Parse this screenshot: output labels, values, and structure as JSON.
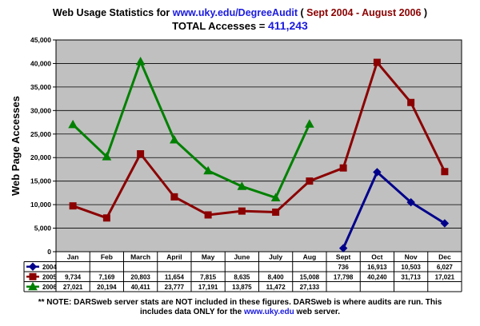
{
  "header": {
    "title_prefix": "Web Usage Statistics for ",
    "title_url": "www.uky.edu/DegreeAudit",
    "title_open": " ( ",
    "title_dates": "Sept 2004 - August 2006",
    "title_close": " )",
    "total_label": "TOTAL Accesses = ",
    "total_value": "411,243"
  },
  "note": {
    "line1": "** NOTE: DARSweb server stats are NOT included in these figures. DARSweb is where audits are run. This",
    "line2_prefix": "includes data ONLY for the ",
    "line2_url": "www.uky.edu",
    "line2_suffix": " web server."
  },
  "chart_data": {
    "type": "line",
    "ylabel": "Web Page Accesses",
    "ylim": [
      0,
      45000
    ],
    "yticks": [
      0,
      5000,
      10000,
      15000,
      20000,
      25000,
      30000,
      35000,
      40000,
      45000
    ],
    "ytick_labels": [
      "0",
      "5,000",
      "10,000",
      "15,000",
      "20,000",
      "25,000",
      "30,000",
      "35,000",
      "40,000",
      "45,000"
    ],
    "grid": true,
    "legend": "data-table-below",
    "categories": [
      "Jan",
      "Feb",
      "March",
      "April",
      "May",
      "June",
      "July",
      "Aug",
      "Sept",
      "Oct",
      "Nov",
      "Dec"
    ],
    "series": [
      {
        "name": "2004",
        "color": "#00008b",
        "marker": "diamond",
        "values": [
          null,
          null,
          null,
          null,
          null,
          null,
          null,
          null,
          736,
          16913,
          10503,
          6027
        ],
        "labels": [
          "",
          "",
          "",
          "",
          "",
          "",
          "",
          "",
          "736",
          "16,913",
          "10,503",
          "6,027"
        ]
      },
      {
        "name": "2005",
        "color": "#8b0000",
        "marker": "square",
        "values": [
          9734,
          7169,
          20803,
          11654,
          7815,
          8635,
          8400,
          15008,
          17798,
          40240,
          31713,
          17021
        ],
        "labels": [
          "9,734",
          "7,169",
          "20,803",
          "11,654",
          "7,815",
          "8,635",
          "8,400",
          "15,008",
          "17,798",
          "40,240",
          "31,713",
          "17,021"
        ]
      },
      {
        "name": "2006",
        "color": "#008000",
        "marker": "triangle",
        "values": [
          27021,
          20194,
          40411,
          23777,
          17191,
          13875,
          11472,
          27133,
          null,
          null,
          null,
          null
        ],
        "labels": [
          "27,021",
          "20,194",
          "40,411",
          "23,777",
          "17,191",
          "13,875",
          "11,472",
          "27,133",
          "",
          "",
          "",
          ""
        ]
      }
    ]
  }
}
